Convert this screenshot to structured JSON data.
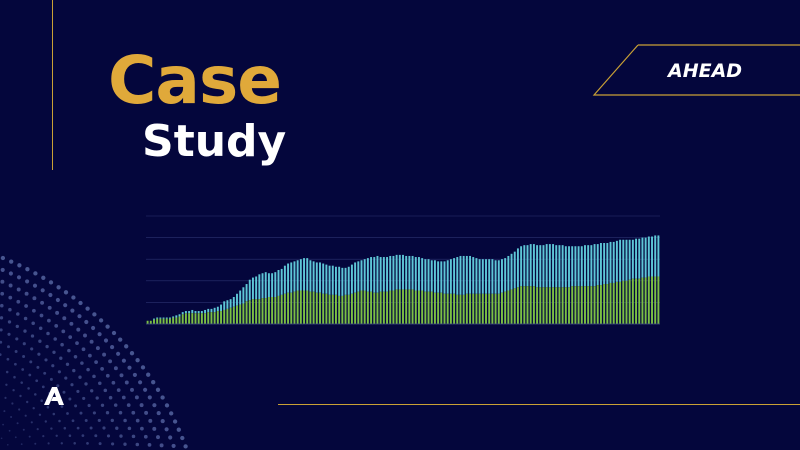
{
  "slide": {
    "title_line1": "Case",
    "title_line2": "Study"
  },
  "brand": {
    "logo_text": "AHEAD"
  },
  "colors": {
    "background": "#04063c",
    "gold": "#c9a035",
    "title_gold": "#e0a93a",
    "bar_top": "#5ec6d6",
    "bar_bottom": "#7bbf44"
  },
  "icons": {
    "corner_logo": "ahead-a-mark-icon"
  },
  "chart_data": {
    "type": "bar",
    "stacked": true,
    "grid": true,
    "axis_labels_visible": false,
    "series": [
      {
        "color": "#7bbf44",
        "values": [
          3,
          3,
          4,
          5,
          5,
          5,
          5,
          5,
          6,
          6,
          7,
          9,
          10,
          10,
          10,
          10,
          10,
          10,
          10,
          11,
          11,
          11,
          12,
          12,
          13,
          14,
          15,
          16,
          17,
          18,
          19,
          21,
          22,
          23,
          23,
          23,
          24,
          24,
          25,
          25,
          25,
          26,
          27,
          28,
          29,
          29,
          30,
          31,
          31,
          31,
          31,
          30,
          30,
          29,
          29,
          28,
          28,
          27,
          27,
          27,
          26,
          26,
          27,
          27,
          28,
          29,
          30,
          31,
          31,
          30,
          30,
          29,
          29,
          30,
          30,
          30,
          31,
          31,
          32,
          32,
          32,
          32,
          32,
          32,
          31,
          31,
          31,
          30,
          30,
          30,
          29,
          29,
          29,
          28,
          28,
          28,
          28,
          27,
          27,
          27,
          28,
          28,
          28,
          28,
          28,
          28,
          28,
          28,
          28,
          28,
          28,
          29,
          30,
          31,
          32,
          33,
          34,
          35,
          35,
          35,
          35,
          35,
          34,
          34,
          34,
          34,
          34,
          34,
          34,
          34,
          34,
          34,
          34,
          35,
          35,
          35,
          35,
          35,
          35,
          35,
          35,
          36,
          36,
          37,
          37,
          38,
          38,
          39,
          39,
          40,
          40,
          41,
          42,
          42,
          42,
          43,
          43,
          44,
          44,
          44,
          44
        ],
        "total": [
          3,
          3,
          5,
          6,
          6,
          6,
          6,
          6,
          7,
          8,
          9,
          11,
          12,
          12,
          13,
          12,
          12,
          12,
          13,
          14,
          14,
          15,
          16,
          18,
          21,
          22,
          23,
          25,
          28,
          31,
          34,
          37,
          41,
          43,
          44,
          46,
          47,
          48,
          47,
          47,
          48,
          50,
          51,
          54,
          56,
          57,
          58,
          59,
          60,
          61,
          61,
          59,
          58,
          57,
          57,
          56,
          55,
          54,
          54,
          53,
          53,
          52,
          52,
          53,
          55,
          57,
          58,
          59,
          60,
          61,
          62,
          62,
          63,
          62,
          62,
          62,
          63,
          63,
          64,
          64,
          64,
          63,
          63,
          63,
          62,
          62,
          61,
          60,
          60,
          59,
          59,
          58,
          58,
          58,
          59,
          60,
          61,
          62,
          63,
          63,
          63,
          63,
          62,
          61,
          60,
          60,
          60,
          60,
          60,
          59,
          59,
          60,
          61,
          63,
          65,
          67,
          70,
          72,
          73,
          73,
          74,
          74,
          73,
          73,
          73,
          74,
          74,
          74,
          73,
          73,
          73,
          72,
          72,
          72,
          72,
          72,
          72,
          73,
          73,
          73,
          74,
          74,
          75,
          75,
          75,
          76,
          76,
          77,
          78,
          78,
          78,
          78,
          78,
          79,
          79,
          80,
          80,
          81,
          81,
          82,
          82
        ]
      }
    ],
    "ylim": [
      0,
      100
    ]
  }
}
